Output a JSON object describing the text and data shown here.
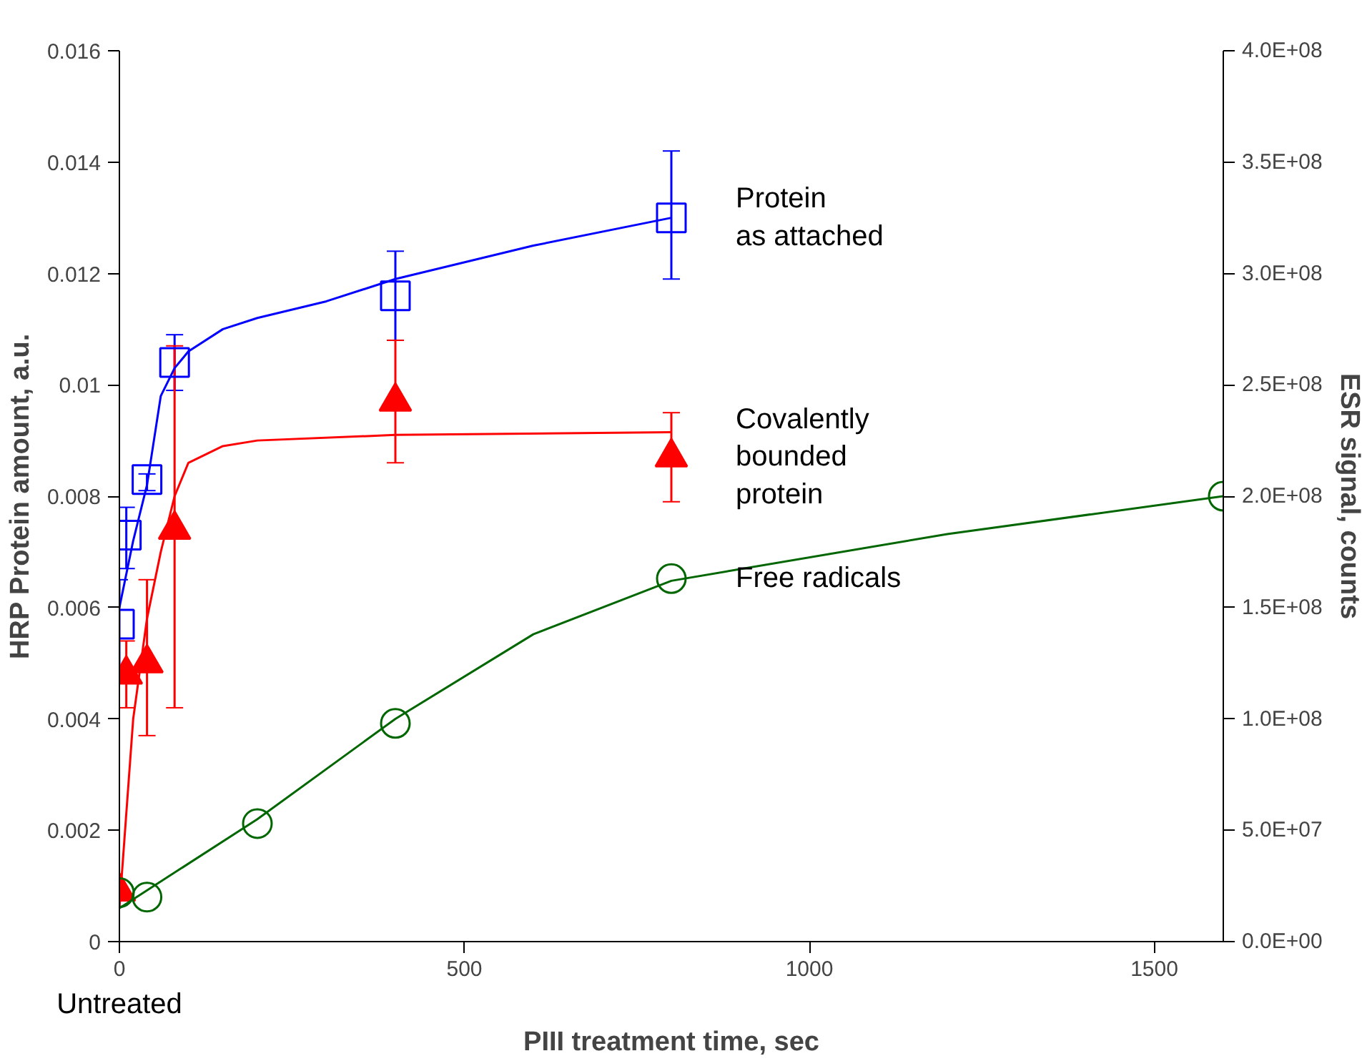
{
  "chart_data": {
    "type": "scatter",
    "xlabel": "PIII treatment time, sec",
    "ylabel": "HRP Protein amount, a.u.",
    "y2label": "ESR signal, counts",
    "xlim": [
      0,
      1600
    ],
    "xticks": [
      0,
      500,
      1000,
      1500
    ],
    "ylim": [
      0,
      0.016
    ],
    "yticks": [
      0,
      0.002,
      0.004,
      0.006,
      0.008,
      0.01,
      0.012,
      0.014,
      0.016
    ],
    "y2lim": [
      0,
      400000000
    ],
    "y2ticks": [
      {
        "value": 0,
        "label": "0.0E+00"
      },
      {
        "value": 50000000,
        "label": "5.0E+07"
      },
      {
        "value": 100000000,
        "label": "1.0E+08"
      },
      {
        "value": 150000000,
        "label": "1.5E+08"
      },
      {
        "value": 200000000,
        "label": "2.0E+08"
      },
      {
        "value": 250000000,
        "label": "2.5E+08"
      },
      {
        "value": 300000000,
        "label": "3.0E+08"
      },
      {
        "value": 350000000,
        "label": "3.5E+08"
      },
      {
        "value": 400000000,
        "label": "4.0E+08"
      }
    ],
    "grid": false,
    "annotations": [
      "Untreated"
    ],
    "series": [
      {
        "name": "Protein\nas attached",
        "color": "#0000ff",
        "marker": "square",
        "x": [
          0,
          10,
          40,
          80,
          400,
          800
        ],
        "values": [
          0.0057,
          0.0073,
          0.0083,
          0.0104,
          0.0116,
          0.013
        ],
        "errors": [
          [
            0.0049,
            0.0065
          ],
          [
            0.0067,
            0.0078
          ],
          [
            0.0081,
            0.0084
          ],
          [
            0.0099,
            0.0109
          ],
          [
            0.0108,
            0.0124
          ],
          [
            0.0119,
            0.0142
          ]
        ]
      },
      {
        "type": "line",
        "color": "#0000ff",
        "marker": "none",
        "x": [
          0,
          20,
          40,
          50,
          60,
          80,
          100,
          150,
          200,
          300,
          400,
          600,
          800
        ],
        "values": [
          0.006,
          0.0072,
          0.0082,
          0.009,
          0.0098,
          0.0103,
          0.0106,
          0.011,
          0.0112,
          0.0115,
          0.0119,
          0.0125,
          0.013
        ]
      },
      {
        "name": "Covalently\nbounded\nprotein",
        "color": "#ff0000",
        "marker": "triangle",
        "x": [
          0,
          10,
          40,
          80,
          400,
          800
        ],
        "values": [
          0.0009,
          0.0048,
          0.005,
          0.0074,
          0.0097,
          0.0087
        ],
        "errors": [
          null,
          [
            0.0042,
            0.0054
          ],
          [
            0.0037,
            0.0065
          ],
          [
            0.0042,
            0.0107
          ],
          [
            0.0086,
            0.0108
          ],
          [
            0.0079,
            0.0095
          ]
        ]
      },
      {
        "type": "line",
        "color": "#ff0000",
        "marker": "none",
        "x": [
          0,
          20,
          40,
          60,
          80,
          100,
          150,
          200,
          400,
          800
        ],
        "values": [
          0.0006,
          0.004,
          0.0058,
          0.007,
          0.008,
          0.0086,
          0.0089,
          0.009,
          0.0091,
          0.00915
        ]
      },
      {
        "name": "Free radicals",
        "color": "#006600",
        "marker": "circle",
        "axis": "y2",
        "x": [
          0,
          40,
          200,
          400,
          800,
          1600
        ],
        "values": [
          22000000,
          20000000,
          53000000,
          98000000,
          163000000,
          200000000
        ]
      },
      {
        "type": "line",
        "color": "#006600",
        "marker": "none",
        "axis": "y2",
        "x": [
          0,
          200,
          400,
          600,
          800,
          1200,
          1600
        ],
        "values": [
          15000000,
          55000000,
          100000000,
          138000000,
          162000000,
          183000000,
          200000000
        ]
      }
    ]
  }
}
